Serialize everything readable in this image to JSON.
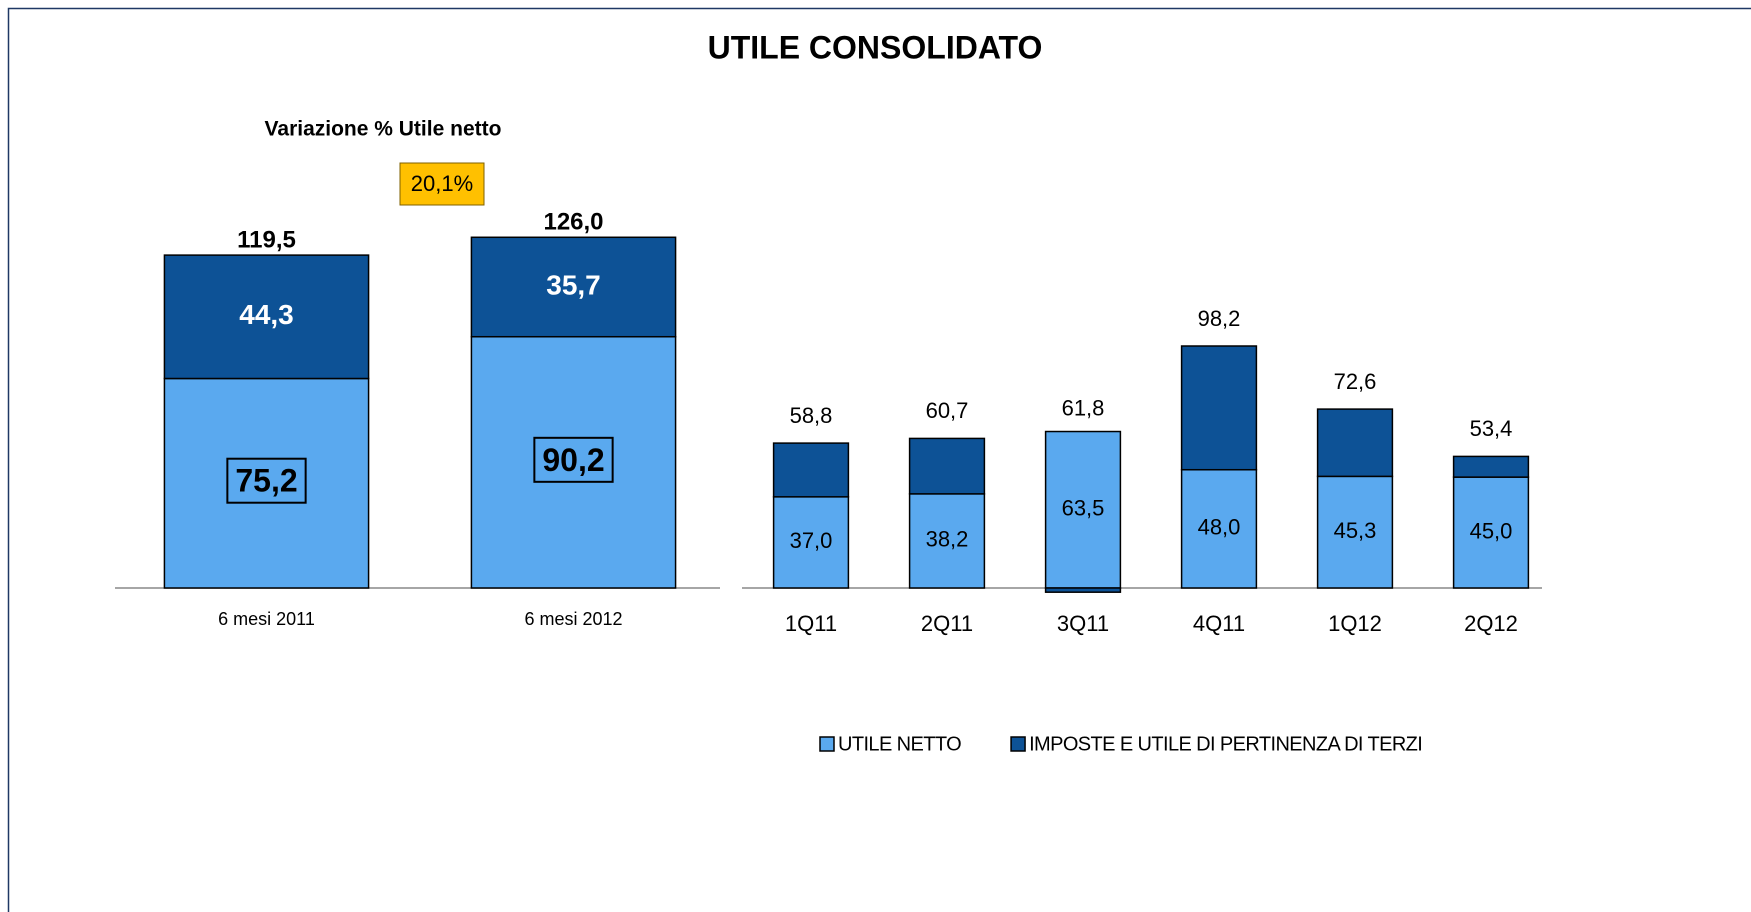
{
  "title": "UTILE CONSOLIDATO",
  "chart_data": [
    {
      "type": "bar",
      "stacked": true,
      "subtitle": "Variazione % Utile netto",
      "annotation": "20,1%",
      "categories": [
        "6 mesi 2011",
        "6 mesi 2012"
      ],
      "series": [
        {
          "color": "#5aa9ef",
          "values": [
            75.2,
            90.2
          ],
          "value_labels": [
            "75,2",
            "90,2"
          ]
        },
        {
          "color": "#0d5296",
          "values": [
            44.3,
            35.7
          ],
          "value_labels": [
            "44,3",
            "35,7"
          ]
        }
      ],
      "totals": [
        119.5,
        126.0
      ],
      "total_labels": [
        "119,5",
        "126,0"
      ],
      "ylim": [
        0,
        140
      ]
    },
    {
      "type": "bar",
      "stacked": true,
      "categories": [
        "1Q11",
        "2Q11",
        "3Q11",
        "4Q11",
        "1Q12",
        "2Q12"
      ],
      "series": [
        {
          "name": "UTILE NETTO",
          "color": "#5aa9ef",
          "values": [
            37.0,
            38.2,
            63.5,
            48.0,
            45.3,
            45.0
          ],
          "value_labels": [
            "37,0",
            "38,2",
            "63,5",
            "48,0",
            "45,3",
            "45,0"
          ]
        },
        {
          "name": "IMPOSTE E UTILE DI PERTINENZA DI TERZI",
          "color": "#0d5296",
          "values": [
            21.8,
            22.5,
            -1.7,
            50.2,
            27.3,
            8.4
          ]
        }
      ],
      "totals": [
        58.8,
        60.7,
        61.8,
        98.2,
        72.6,
        53.4
      ],
      "total_labels": [
        "58,8",
        "60,7",
        "61,8",
        "98,2",
        "72,6",
        "53,4"
      ],
      "ylim": [
        0,
        140
      ]
    }
  ]
}
